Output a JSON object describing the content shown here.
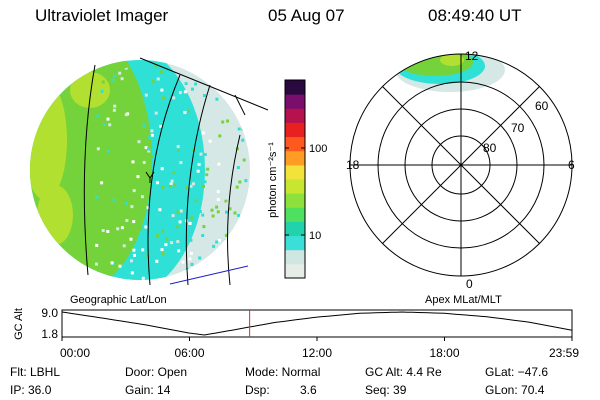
{
  "header": {
    "instrument": "Ultraviolet Imager",
    "date": "05 Aug 07",
    "time": "08:49:40 UT"
  },
  "colorbar": {
    "unit_label": "photon cm⁻²s⁻¹",
    "ticks": [
      "100",
      "10"
    ],
    "colors": [
      "#e6ece6",
      "#cfe6e2",
      "#3ae0d8",
      "#22d2ac",
      "#50e060",
      "#8ee03c",
      "#c8e630",
      "#f2e23a",
      "#ff9c24",
      "#ff5a1e",
      "#e82020",
      "#b6124e",
      "#7a0e6c",
      "#2a0840"
    ]
  },
  "globe": {
    "label": "Geographic Lat/Lon",
    "palette": {
      "green": "#74d23a",
      "yellow_green": "#b2e030",
      "cyan": "#2fe0d6",
      "pale": "#d6e8e6"
    }
  },
  "polar": {
    "label": "Apex MLat/MLT",
    "mlt_labels": {
      "top": "12",
      "left": "18",
      "right": "6",
      "bottom": "0"
    },
    "mlat_labels": [
      "60",
      "70",
      "80"
    ]
  },
  "chart_data": {
    "type": "line",
    "title": "GC Alt",
    "ylabel": "GC Alt",
    "yticks": [
      "9.0",
      "1.8"
    ],
    "ylim": [
      1.8,
      9.0
    ],
    "xticks": [
      "00:00",
      "06:00",
      "12:00",
      "18:00",
      "23:59"
    ],
    "xlim_hours": [
      0,
      24
    ],
    "x_hours": [
      0,
      2,
      4,
      6,
      6.7,
      8,
      10,
      12,
      14,
      16,
      18,
      20,
      22,
      24
    ],
    "y_alt": [
      9.0,
      7.0,
      4.9,
      2.4,
      1.8,
      3.3,
      5.7,
      7.4,
      8.6,
      9.0,
      8.6,
      7.5,
      5.8,
      3.3
    ],
    "current_time_hours": 8.83,
    "current_marker_color": "#c83232"
  },
  "info": {
    "row1": {
      "flt": "Flt: LBHL",
      "door": "Door: Open",
      "mode": "Mode: Normal",
      "gcalt": "GC Alt: 4.4 Re",
      "glat": "GLat: −47.6"
    },
    "row2": {
      "ip": "IP: 36.0",
      "gain": "Gain: 14",
      "dsp_label": "Dsp:",
      "dsp_value": "3.6",
      "seq": "Seq: 39",
      "glon": "GLon: 70.4"
    }
  }
}
